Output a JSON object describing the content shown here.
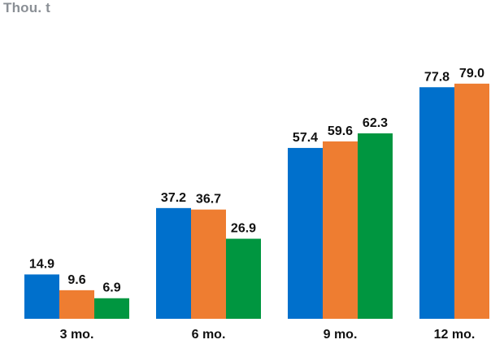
{
  "chart_data": {
    "type": "bar",
    "unit_label": "Thou. t",
    "categories": [
      "3 mo.",
      "6 mo.",
      "9 mo.",
      "12 mo."
    ],
    "series": [
      {
        "color": "#0070cc",
        "values": [
          14.9,
          37.2,
          57.4,
          77.8
        ]
      },
      {
        "color": "#ee7d31",
        "values": [
          9.6,
          36.7,
          59.6,
          79.0
        ]
      },
      {
        "color": "#009640",
        "values": [
          6.9,
          26.9,
          62.3,
          null
        ]
      }
    ],
    "value_labels": [
      [
        "14.9",
        "37.2",
        "57.4",
        "77.8"
      ],
      [
        "9.6",
        "36.7",
        "59.6",
        "79.0"
      ],
      [
        "6.9",
        "26.9",
        "62.3",
        null
      ]
    ],
    "ylim": [
      0,
      80
    ],
    "grid": false,
    "legend": "none"
  }
}
